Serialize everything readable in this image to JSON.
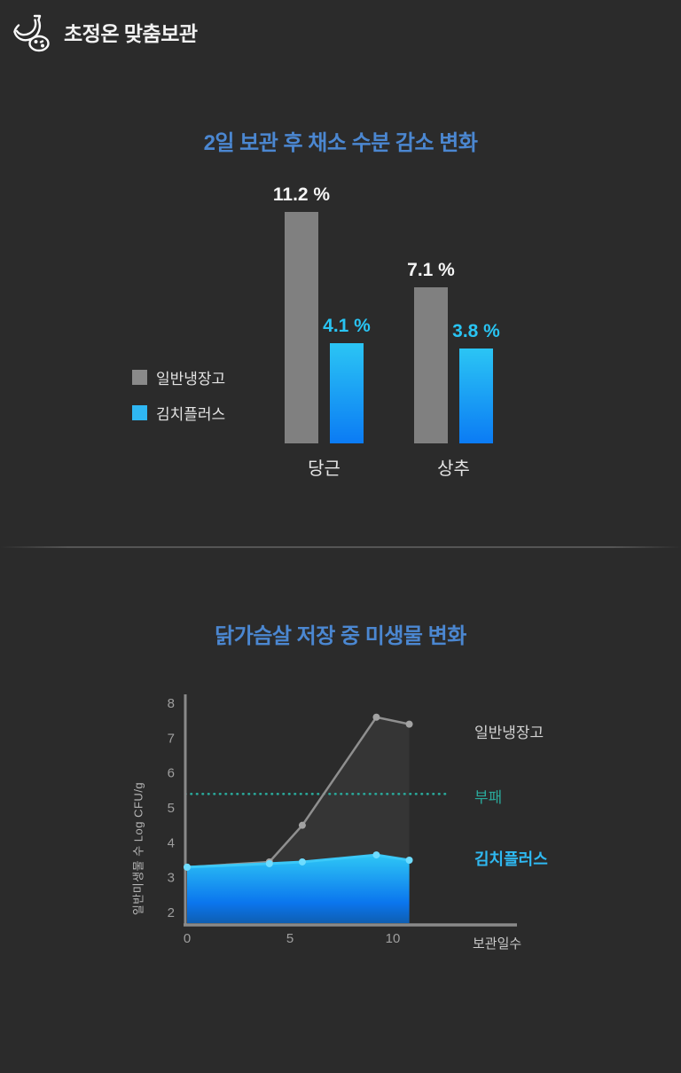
{
  "header": {
    "brand": "초정온 맞춤보관",
    "icon": "banana-fruit-icon"
  },
  "colors": {
    "background": "#2b2b2b",
    "title_blue": "#4b87d1",
    "bar_gray": "#808080",
    "bar_blue_top": "#2bc5f4",
    "bar_blue_bottom": "#0b7bf4",
    "value_label_white": "#f5f5f5",
    "value_label_cyan": "#29c4f3",
    "threshold_teal": "#2aa99b",
    "line_gray": "#8f8f8f",
    "line_blue": "#3bc8f8",
    "axis_gray": "#8a8a8a",
    "tick_gray": "#9f9f9f"
  },
  "chart_data": [
    {
      "type": "bar",
      "title": "2일 보관 후 채소 수분 감소 변화",
      "categories": [
        "당근",
        "상추"
      ],
      "series": [
        {
          "name": "일반냉장고",
          "values": [
            11.2,
            7.1
          ],
          "color": "#808080",
          "label_color": "#f5f5f5"
        },
        {
          "name": "김치플러스",
          "values": [
            4.1,
            3.8
          ],
          "color_top": "#2bc5f4",
          "color_bottom": "#0b7bf4",
          "label_color": "#29c4f3"
        }
      ],
      "value_suffix": " %",
      "unit": "%",
      "ylim": [
        0,
        12
      ],
      "grid": false,
      "legend_position": "left"
    },
    {
      "type": "line",
      "title": "닭가슴살 저장 중 미생물 변화",
      "ylabel": "일반미생물 수 Log CFU/g",
      "xlabel": "보관일수",
      "x_ticks": [
        0,
        5,
        10
      ],
      "y_ticks": [
        2,
        3,
        4,
        5,
        6,
        7,
        8
      ],
      "xlim": [
        0,
        16
      ],
      "ylim": [
        2,
        8
      ],
      "grid": false,
      "legend_position": "right-inline",
      "series": [
        {
          "name": "일반냉장고",
          "points": [
            [
              0,
              3.3
            ],
            [
              4,
              3.45
            ],
            [
              5.6,
              4.5
            ],
            [
              9.2,
              7.6
            ],
            [
              10.8,
              7.4
            ]
          ],
          "color": "#8f8f8f",
          "marker_color": "#a3a3a3",
          "fill": "rgba(255,255,255,0.05)"
        },
        {
          "name": "김치플러스",
          "points": [
            [
              0,
              3.3
            ],
            [
              4,
              3.4
            ],
            [
              5.6,
              3.45
            ],
            [
              9.2,
              3.65
            ],
            [
              10.8,
              3.5
            ]
          ],
          "color": "#3bc8f8",
          "marker_color": "#6edcff",
          "area_top": "#2ec6f5",
          "area_mid": "#0b76ee",
          "area_bottom": "#0e5fb2",
          "label_color": "#2fb9f2"
        }
      ],
      "threshold": {
        "label": "부패",
        "value": 5.4,
        "color": "#2aa99b",
        "style": "dotted"
      }
    }
  ]
}
